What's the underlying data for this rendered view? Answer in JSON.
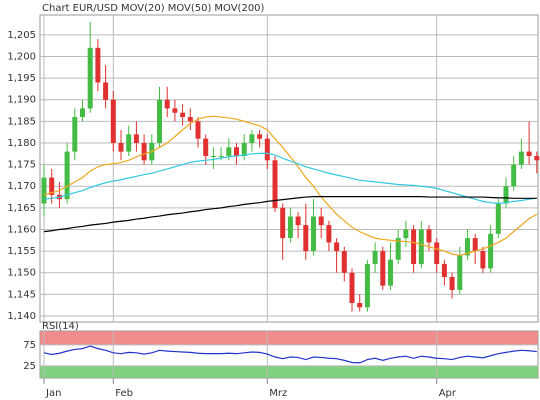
{
  "chart_data": [
    {
      "type": "candlestick",
      "title": "Chart EUR/USD",
      "title_color": "#d03030",
      "up_color": "#44bb44",
      "down_color": "#e03030",
      "grid": true,
      "categories": [
        "Jan",
        null,
        null,
        null,
        null,
        null,
        null,
        null,
        null,
        "Feb",
        null,
        null,
        null,
        null,
        null,
        null,
        null,
        null,
        null,
        null,
        null,
        null,
        null,
        null,
        null,
        null,
        null,
        null,
        null,
        "Mrz",
        null,
        null,
        null,
        null,
        null,
        null,
        null,
        null,
        null,
        null,
        null,
        null,
        null,
        null,
        null,
        null,
        null,
        null,
        null,
        null,
        null,
        "Apr",
        null,
        null,
        null,
        null,
        null,
        null,
        null,
        null,
        null,
        null,
        null,
        null,
        null
      ],
      "open": [
        1.166,
        1.172,
        1.168,
        1.167,
        1.178,
        1.186,
        1.188,
        1.202,
        1.194,
        1.19,
        1.18,
        1.178,
        1.182,
        1.18,
        1.176,
        1.18,
        1.19,
        1.188,
        1.187,
        1.186,
        1.185,
        1.181,
        1.177,
        1.177,
        1.177,
        1.179,
        1.177,
        1.18,
        1.182,
        1.181,
        1.176,
        1.165,
        1.158,
        1.163,
        1.161,
        1.155,
        1.163,
        1.161,
        1.157,
        1.155,
        1.15,
        1.143,
        1.142,
        1.152,
        1.155,
        1.147,
        1.153,
        1.158,
        1.16,
        1.152,
        1.16,
        1.157,
        1.152,
        1.149,
        1.146,
        1.154,
        1.158,
        1.155,
        1.151,
        1.159,
        1.166,
        1.17,
        1.175,
        1.178,
        1.177
      ],
      "high": [
        1.175,
        1.174,
        1.171,
        1.18,
        1.188,
        1.19,
        1.208,
        1.204,
        1.198,
        1.192,
        1.183,
        1.184,
        1.185,
        1.182,
        1.182,
        1.193,
        1.193,
        1.19,
        1.189,
        1.188,
        1.186,
        1.182,
        1.179,
        1.179,
        1.181,
        1.18,
        1.182,
        1.183,
        1.183,
        1.182,
        1.177,
        1.166,
        1.165,
        1.164,
        1.166,
        1.167,
        1.165,
        1.162,
        1.158,
        1.156,
        1.151,
        1.145,
        1.153,
        1.157,
        1.156,
        1.157,
        1.16,
        1.162,
        1.161,
        1.162,
        1.161,
        1.158,
        1.153,
        1.15,
        1.156,
        1.16,
        1.159,
        1.156,
        1.161,
        1.167,
        1.172,
        1.177,
        1.181,
        1.185,
        1.178
      ],
      "low": [
        1.163,
        1.166,
        1.165,
        1.166,
        1.176,
        1.185,
        1.187,
        1.192,
        1.188,
        1.178,
        1.176,
        1.177,
        1.178,
        1.175,
        1.175,
        1.179,
        1.186,
        1.185,
        1.184,
        1.183,
        1.179,
        1.175,
        1.174,
        1.176,
        1.176,
        1.175,
        1.176,
        1.178,
        1.179,
        1.174,
        1.164,
        1.153,
        1.157,
        1.158,
        1.153,
        1.154,
        1.158,
        1.155,
        1.15,
        1.148,
        1.141,
        1.141,
        1.141,
        1.15,
        1.146,
        1.146,
        1.152,
        1.156,
        1.15,
        1.151,
        1.155,
        1.15,
        1.147,
        1.144,
        1.145,
        1.153,
        1.152,
        1.15,
        1.15,
        1.158,
        1.165,
        1.169,
        1.174,
        1.175,
        1.173
      ],
      "close": [
        1.172,
        1.168,
        1.167,
        1.178,
        1.186,
        1.188,
        1.202,
        1.194,
        1.19,
        1.18,
        1.178,
        1.182,
        1.18,
        1.176,
        1.18,
        1.19,
        1.188,
        1.187,
        1.186,
        1.185,
        1.181,
        1.177,
        1.177,
        1.177,
        1.179,
        1.177,
        1.18,
        1.182,
        1.181,
        1.176,
        1.165,
        1.158,
        1.163,
        1.161,
        1.155,
        1.163,
        1.161,
        1.157,
        1.155,
        1.15,
        1.143,
        1.142,
        1.152,
        1.155,
        1.147,
        1.153,
        1.158,
        1.16,
        1.152,
        1.16,
        1.157,
        1.152,
        1.149,
        1.146,
        1.154,
        1.158,
        1.155,
        1.151,
        1.159,
        1.166,
        1.17,
        1.175,
        1.178,
        1.177,
        1.176
      ],
      "series": [
        {
          "name": "MOV(20)",
          "color": "#f0a820",
          "values": [
            1.168,
            1.1685,
            1.169,
            1.17,
            1.171,
            1.172,
            1.1735,
            1.1745,
            1.175,
            1.1752,
            1.1755,
            1.176,
            1.1768,
            1.1775,
            1.178,
            1.179,
            1.18,
            1.1815,
            1.183,
            1.1845,
            1.1855,
            1.186,
            1.1862,
            1.186,
            1.1858,
            1.1855,
            1.185,
            1.1845,
            1.184,
            1.183,
            1.181,
            1.179,
            1.1768,
            1.1745,
            1.172,
            1.17,
            1.1675,
            1.1655,
            1.1635,
            1.162,
            1.1605,
            1.1595,
            1.1587,
            1.158,
            1.1577,
            1.1575,
            1.1573,
            1.1572,
            1.157,
            1.1565,
            1.156,
            1.1555,
            1.155,
            1.1543,
            1.154,
            1.1545,
            1.155,
            1.1555,
            1.1562,
            1.157,
            1.158,
            1.1595,
            1.161,
            1.1625,
            1.1635
          ]
        },
        {
          "name": "MOV(50)",
          "color": "#30c8e0",
          "values": [
            1.167,
            1.1672,
            1.1675,
            1.168,
            1.1685,
            1.169,
            1.1697,
            1.1703,
            1.1708,
            1.1712,
            1.1715,
            1.1719,
            1.1723,
            1.1727,
            1.173,
            1.1735,
            1.174,
            1.1745,
            1.175,
            1.1755,
            1.1758,
            1.176,
            1.1762,
            1.1765,
            1.1768,
            1.177,
            1.1772,
            1.1775,
            1.1776,
            1.1776,
            1.1772,
            1.1765,
            1.1758,
            1.1752,
            1.1745,
            1.174,
            1.1735,
            1.173,
            1.1726,
            1.1722,
            1.1718,
            1.1714,
            1.1712,
            1.171,
            1.1708,
            1.1706,
            1.1704,
            1.1703,
            1.1702,
            1.17,
            1.1698,
            1.1695,
            1.169,
            1.1685,
            1.168,
            1.1675,
            1.167,
            1.1665,
            1.1662,
            1.166,
            1.1662,
            1.1665,
            1.1667,
            1.167,
            1.1672
          ]
        },
        {
          "name": "MOV(200)",
          "color": "#000000",
          "values": [
            1.1595,
            1.1597,
            1.16,
            1.1602,
            1.1605,
            1.1607,
            1.161,
            1.1612,
            1.1614,
            1.1617,
            1.1619,
            1.1621,
            1.1624,
            1.1626,
            1.1629,
            1.1631,
            1.1634,
            1.1636,
            1.1638,
            1.1641,
            1.1643,
            1.1646,
            1.1648,
            1.165,
            1.1653,
            1.1655,
            1.1658,
            1.166,
            1.1662,
            1.1665,
            1.1667,
            1.1669,
            1.1671,
            1.1673,
            1.1675,
            1.1676,
            1.1676,
            1.1676,
            1.1676,
            1.1676,
            1.1676,
            1.1676,
            1.1676,
            1.1676,
            1.1676,
            1.1676,
            1.1676,
            1.1676,
            1.1676,
            1.1676,
            1.1675,
            1.1675,
            1.1675,
            1.1675,
            1.1675,
            1.1675,
            1.1675,
            1.1675,
            1.1674,
            1.1673,
            1.1673,
            1.1672,
            1.1672,
            1.1672,
            1.1672
          ]
        }
      ],
      "ylim": [
        1.1386,
        1.2096
      ],
      "yticks": [
        {
          "value": 1.14,
          "label": "1,140"
        },
        {
          "value": 1.145,
          "label": "1,145"
        },
        {
          "value": 1.15,
          "label": "1,150"
        },
        {
          "value": 1.155,
          "label": "1,155"
        },
        {
          "value": 1.16,
          "label": "1,160"
        },
        {
          "value": 1.165,
          "label": "1,165"
        },
        {
          "value": 1.17,
          "label": "1,170"
        },
        {
          "value": 1.175,
          "label": "1,175"
        },
        {
          "value": 1.18,
          "label": "1,180"
        },
        {
          "value": 1.185,
          "label": "1,185"
        },
        {
          "value": 1.19,
          "label": "1,190"
        },
        {
          "value": 1.195,
          "label": "1,195"
        },
        {
          "value": 1.2,
          "label": "1,200"
        },
        {
          "value": 1.205,
          "label": "1,205"
        }
      ]
    },
    {
      "type": "line",
      "title": "RSI(14)",
      "grid": true,
      "bands": [
        {
          "from": 75,
          "to": 108,
          "color": "#f08c8c"
        },
        {
          "from": -4,
          "to": 25,
          "color": "#7fd07f"
        }
      ],
      "series": [
        {
          "color": "#2233cc",
          "values": [
            56,
            52,
            55,
            60,
            64,
            66,
            72,
            66,
            62,
            56,
            54,
            57,
            56,
            53,
            56,
            62,
            60,
            59,
            58,
            57,
            55,
            54,
            54,
            54,
            55,
            54,
            56,
            58,
            57,
            53,
            46,
            42,
            46,
            45,
            40,
            46,
            45,
            43,
            42,
            38,
            33,
            32,
            40,
            43,
            38,
            43,
            46,
            48,
            43,
            48,
            46,
            43,
            42,
            40,
            45,
            48,
            46,
            44,
            49,
            54,
            57,
            60,
            62,
            61,
            59
          ]
        }
      ],
      "ylim": [
        -4,
        108
      ],
      "yticks": [
        25,
        75
      ]
    }
  ]
}
